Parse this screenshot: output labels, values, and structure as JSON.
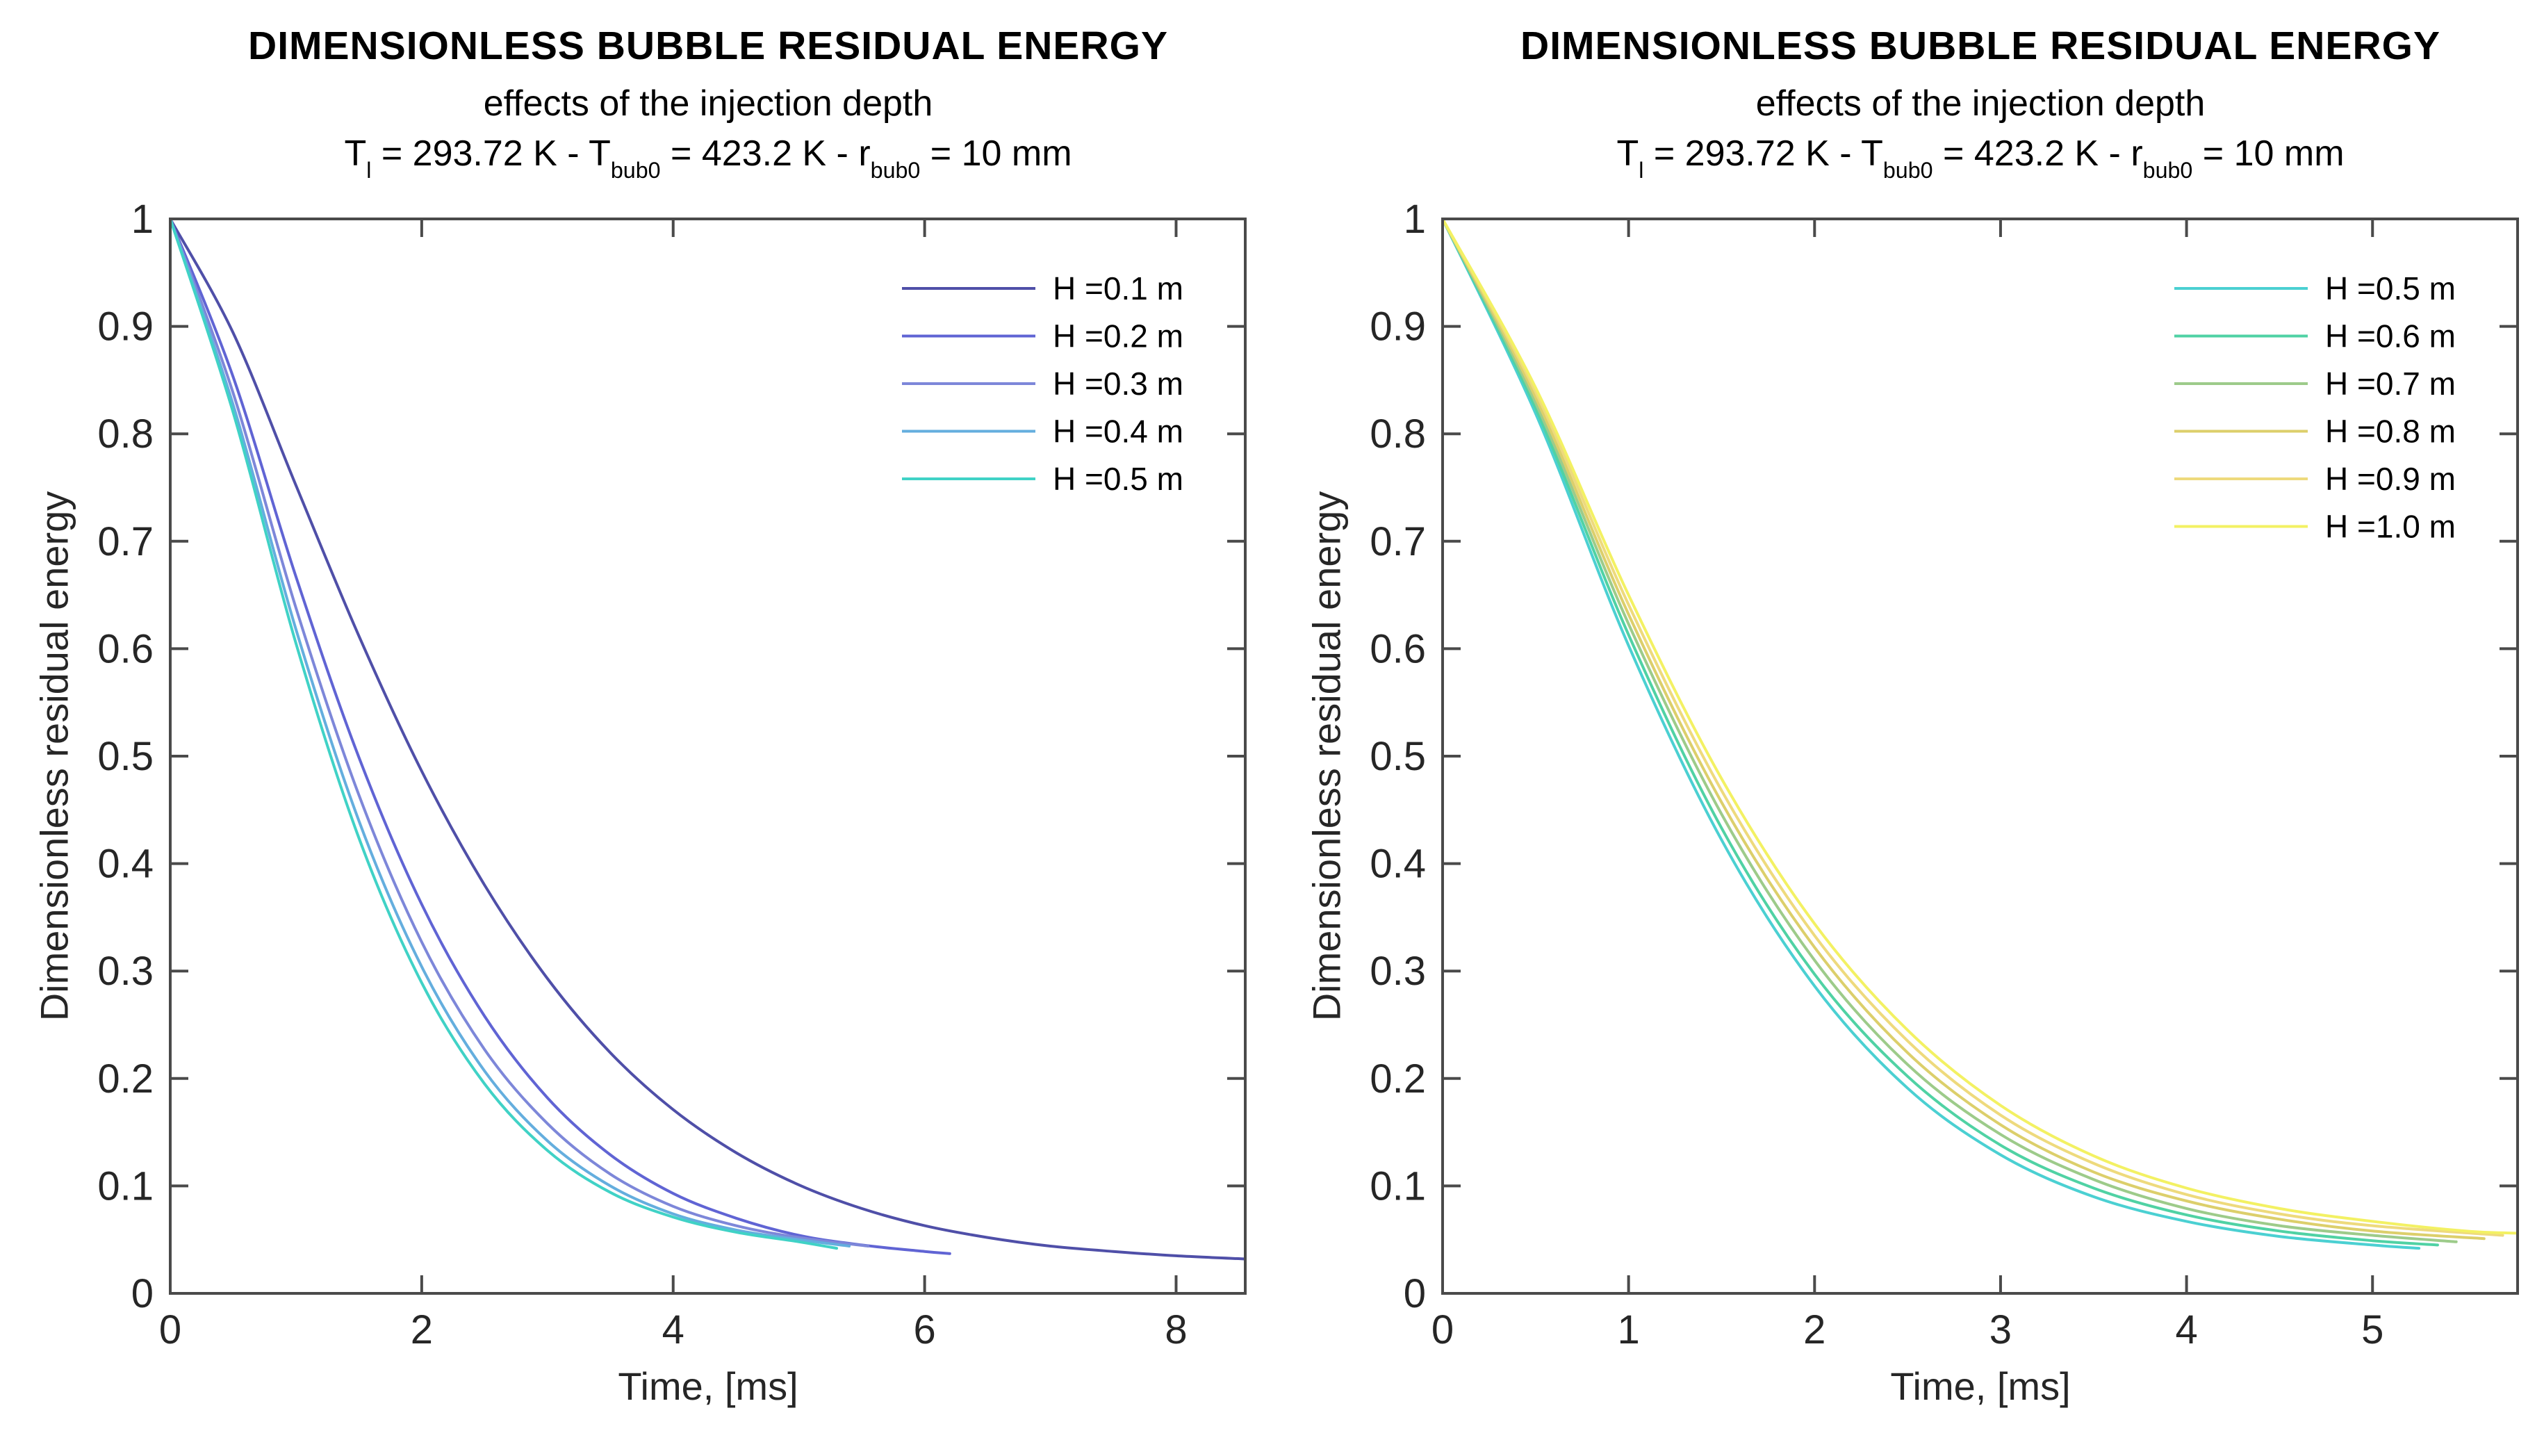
{
  "chart_data": [
    {
      "type": "line",
      "panel": "left",
      "title": "DIMENSIONLESS BUBBLE RESIDUAL ENERGY",
      "subtitle": "effects of the injection depth",
      "param_line": "T_{l} = 293.72 K - T_{bub0} = 423.2 K - r_{bub0} = 10 mm",
      "xlabel": "Time, [ms]",
      "ylabel": "Dimensionless residual energy",
      "xlim": [
        0,
        8.55
      ],
      "ylim": [
        0,
        1
      ],
      "xticks": [
        0,
        2,
        4,
        6,
        8
      ],
      "xtick_labels": [
        "0",
        "2",
        "4",
        "6",
        "8"
      ],
      "yticks": [
        0,
        0.1,
        0.2,
        0.3,
        0.4,
        0.5,
        0.6,
        0.7,
        0.8,
        0.9,
        1
      ],
      "ytick_labels": [
        "0",
        "0.1",
        "0.2",
        "0.3",
        "0.4",
        "0.5",
        "0.6",
        "0.7",
        "0.8",
        "0.9",
        "1"
      ],
      "grid": false,
      "box": true,
      "legend_position": "upper-right-inside-no-box",
      "series": [
        {
          "name": "H =0.1 m",
          "color": "#4f4fa8",
          "points": [
            [
              0,
              1
            ],
            [
              0.5,
              0.894
            ],
            [
              1,
              0.752
            ],
            [
              1.5,
              0.612
            ],
            [
              2,
              0.486
            ],
            [
              2.5,
              0.38
            ],
            [
              3,
              0.293
            ],
            [
              3.5,
              0.224
            ],
            [
              4,
              0.171
            ],
            [
              4.5,
              0.131
            ],
            [
              5,
              0.101
            ],
            [
              5.5,
              0.079
            ],
            [
              6,
              0.063
            ],
            [
              6.5,
              0.052
            ],
            [
              7,
              0.044
            ],
            [
              7.5,
              0.039
            ],
            [
              8,
              0.035
            ],
            [
              8.55,
              0.032
            ]
          ]
        },
        {
          "name": "H =0.2 m",
          "color": "#6064d4",
          "points": [
            [
              0,
              1
            ],
            [
              0.5,
              0.853
            ],
            [
              1,
              0.667
            ],
            [
              1.5,
              0.499
            ],
            [
              2,
              0.362
            ],
            [
              2.5,
              0.258
            ],
            [
              3,
              0.182
            ],
            [
              3.5,
              0.129
            ],
            [
              4,
              0.093
            ],
            [
              4.5,
              0.07
            ],
            [
              5,
              0.054
            ],
            [
              5.5,
              0.045
            ],
            [
              6,
              0.039
            ],
            [
              6.2,
              0.037
            ]
          ]
        },
        {
          "name": "H =0.3 m",
          "color": "#7d87d9",
          "points": [
            [
              0,
              1
            ],
            [
              0.5,
              0.838
            ],
            [
              1,
              0.638
            ],
            [
              1.5,
              0.464
            ],
            [
              2,
              0.327
            ],
            [
              2.5,
              0.227
            ],
            [
              3,
              0.158
            ],
            [
              3.5,
              0.111
            ],
            [
              4,
              0.081
            ],
            [
              4.5,
              0.063
            ],
            [
              5,
              0.052
            ],
            [
              5.55,
              0.044
            ]
          ]
        },
        {
          "name": "H =0.4 m",
          "color": "#64aede",
          "points": [
            [
              0,
              1
            ],
            [
              0.5,
              0.827
            ],
            [
              1,
              0.618
            ],
            [
              1.5,
              0.44
            ],
            [
              2,
              0.304
            ],
            [
              2.5,
              0.207
            ],
            [
              3,
              0.142
            ],
            [
              3.5,
              0.1
            ],
            [
              4,
              0.074
            ],
            [
              4.5,
              0.059
            ],
            [
              5,
              0.05
            ],
            [
              5.4,
              0.044
            ]
          ]
        },
        {
          "name": "H =0.5 m",
          "color": "#40d2c6",
          "points": [
            [
              0,
              1
            ],
            [
              0.5,
              0.82
            ],
            [
              1,
              0.605
            ],
            [
              1.5,
              0.424
            ],
            [
              2,
              0.289
            ],
            [
              2.5,
              0.195
            ],
            [
              3,
              0.133
            ],
            [
              3.5,
              0.094
            ],
            [
              4,
              0.071
            ],
            [
              4.5,
              0.057
            ],
            [
              5,
              0.048
            ],
            [
              5.3,
              0.042
            ]
          ]
        }
      ]
    },
    {
      "type": "line",
      "panel": "right",
      "title": "DIMENSIONLESS BUBBLE RESIDUAL ENERGY",
      "subtitle": "effects of the injection depth",
      "param_line": "T_{l} = 293.72 K - T_{bub0} = 423.2 K - r_{bub0} = 10 mm",
      "xlabel": "Time, [ms]",
      "ylabel": "Dimensionless residual energy",
      "xlim": [
        0,
        5.78
      ],
      "ylim": [
        0,
        1
      ],
      "xticks": [
        0,
        1,
        2,
        3,
        4,
        5
      ],
      "xtick_labels": [
        "0",
        "1",
        "2",
        "3",
        "4",
        "5"
      ],
      "yticks": [
        0,
        0.1,
        0.2,
        0.3,
        0.4,
        0.5,
        0.6,
        0.7,
        0.8,
        0.9,
        1
      ],
      "ytick_labels": [
        "0",
        "0.1",
        "0.2",
        "0.3",
        "0.4",
        "0.5",
        "0.6",
        "0.7",
        "0.8",
        "0.9",
        "1"
      ],
      "grid": false,
      "box": true,
      "legend_position": "upper-right-inside-no-box",
      "series": [
        {
          "name": "H =0.5 m",
          "color": "#4bd0d2",
          "points": [
            [
              0,
              1
            ],
            [
              0.5,
              0.819
            ],
            [
              1,
              0.603
            ],
            [
              1.5,
              0.422
            ],
            [
              2,
              0.286
            ],
            [
              2.5,
              0.191
            ],
            [
              3,
              0.129
            ],
            [
              3.5,
              0.09
            ],
            [
              4,
              0.067
            ],
            [
              4.5,
              0.053
            ],
            [
              5,
              0.045
            ],
            [
              5.25,
              0.042
            ]
          ]
        },
        {
          "name": "H =0.6 m",
          "color": "#50d2a4",
          "points": [
            [
              0,
              1
            ],
            [
              0.5,
              0.824
            ],
            [
              1,
              0.613
            ],
            [
              1.5,
              0.433
            ],
            [
              2,
              0.297
            ],
            [
              2.5,
              0.202
            ],
            [
              3,
              0.138
            ],
            [
              3.5,
              0.098
            ],
            [
              4,
              0.073
            ],
            [
              4.5,
              0.058
            ],
            [
              5,
              0.049
            ],
            [
              5.35,
              0.045
            ]
          ]
        },
        {
          "name": "H =0.7 m",
          "color": "#9dcb8a",
          "points": [
            [
              0,
              1
            ],
            [
              0.5,
              0.829
            ],
            [
              1,
              0.623
            ],
            [
              1.5,
              0.446
            ],
            [
              2,
              0.31
            ],
            [
              2.5,
              0.213
            ],
            [
              3,
              0.148
            ],
            [
              3.5,
              0.106
            ],
            [
              4,
              0.079
            ],
            [
              4.5,
              0.063
            ],
            [
              5,
              0.054
            ],
            [
              5.45,
              0.048
            ]
          ]
        },
        {
          "name": "H =0.8 m",
          "color": "#dccf6b",
          "points": [
            [
              0,
              1
            ],
            [
              0.5,
              0.834
            ],
            [
              1,
              0.632
            ],
            [
              1.5,
              0.457
            ],
            [
              2,
              0.322
            ],
            [
              2.5,
              0.224
            ],
            [
              3,
              0.157
            ],
            [
              3.5,
              0.113
            ],
            [
              4,
              0.086
            ],
            [
              4.5,
              0.069
            ],
            [
              5,
              0.058
            ],
            [
              5.6,
              0.051
            ]
          ]
        },
        {
          "name": "H =0.9 m",
          "color": "#eeda7d",
          "points": [
            [
              0,
              1
            ],
            [
              0.5,
              0.839
            ],
            [
              1,
              0.641
            ],
            [
              1.5,
              0.468
            ],
            [
              2,
              0.333
            ],
            [
              2.5,
              0.235
            ],
            [
              3,
              0.166
            ],
            [
              3.5,
              0.121
            ],
            [
              4,
              0.092
            ],
            [
              4.5,
              0.074
            ],
            [
              5,
              0.063
            ],
            [
              5.7,
              0.054
            ]
          ]
        },
        {
          "name": "H =1.0 m",
          "color": "#f3f163",
          "points": [
            [
              0,
              1
            ],
            [
              0.5,
              0.843
            ],
            [
              1,
              0.65
            ],
            [
              1.5,
              0.479
            ],
            [
              2,
              0.344
            ],
            [
              2.5,
              0.245
            ],
            [
              3,
              0.175
            ],
            [
              3.5,
              0.128
            ],
            [
              4,
              0.098
            ],
            [
              4.5,
              0.079
            ],
            [
              5,
              0.067
            ],
            [
              5.5,
              0.058
            ],
            [
              5.78,
              0.056
            ]
          ]
        }
      ]
    }
  ]
}
